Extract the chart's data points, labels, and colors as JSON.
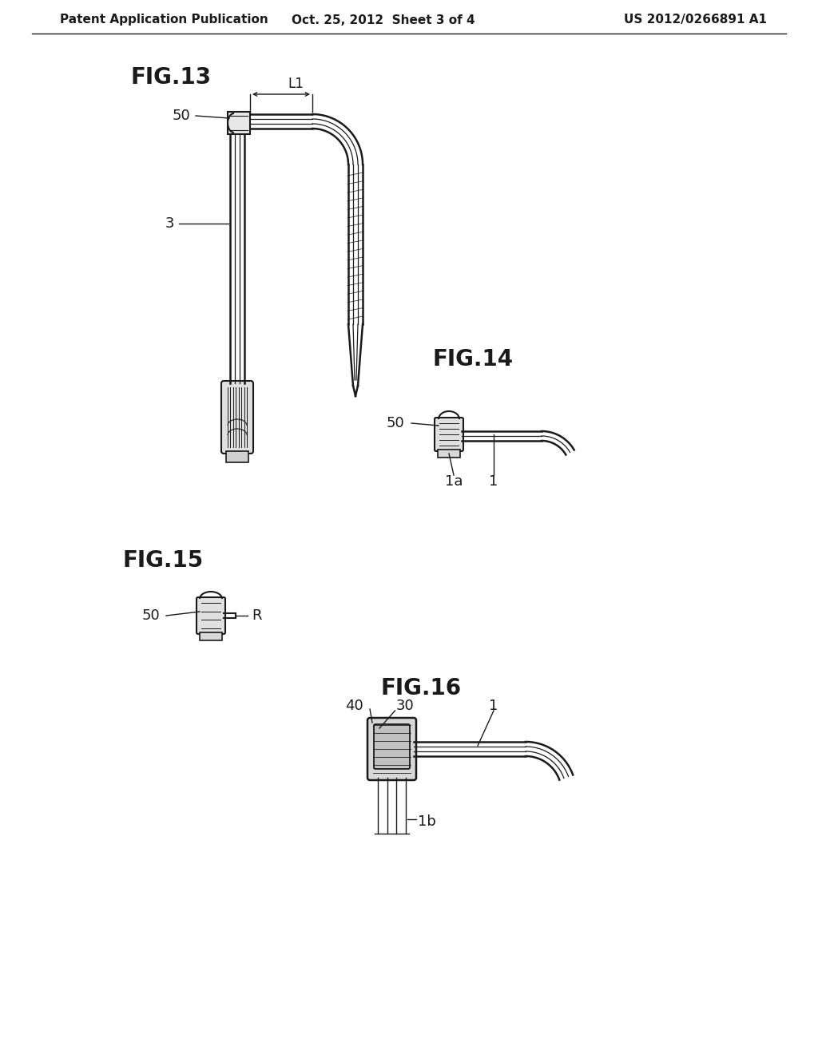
{
  "bg_color": "#ffffff",
  "line_color": "#1a1a1a",
  "header_left": "Patent Application Publication",
  "header_center": "Oct. 25, 2012  Sheet 3 of 4",
  "header_right": "US 2012/0266891 A1",
  "fig13_label": "FIG.13",
  "fig14_label": "FIG.14",
  "fig15_label": "FIG.15",
  "fig16_label": "FIG.16",
  "label_fontsize": 20,
  "header_fontsize": 11,
  "ref_fontsize": 13
}
